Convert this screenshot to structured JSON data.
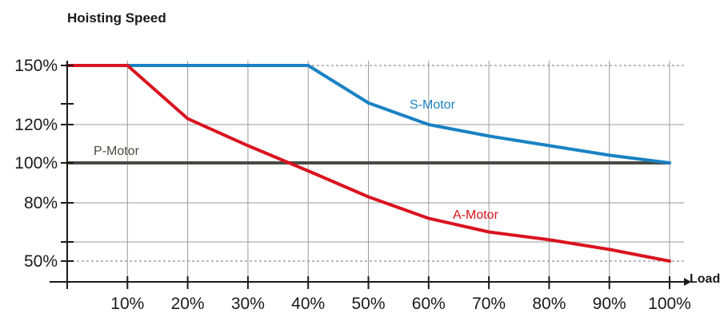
{
  "chart_data": {
    "type": "line",
    "title": "Hoisting Speed",
    "xlabel": "Load",
    "ylabel": "",
    "x_ticks": [
      "10%",
      "20%",
      "30%",
      "40%",
      "50%",
      "60%",
      "70%",
      "80%",
      "90%",
      "100%"
    ],
    "y_ticks": [
      "150%",
      "120%",
      "100%",
      "80%",
      "50%"
    ],
    "y_tick_values": [
      150,
      120,
      100,
      80,
      50
    ],
    "xlim": [
      0,
      100
    ],
    "ylim": [
      40,
      150
    ],
    "grid": true,
    "series": [
      {
        "name": "S-Motor",
        "color": "#1a82c4",
        "x": [
          0,
          10,
          40,
          50,
          60,
          70,
          80,
          90,
          100
        ],
        "y": [
          150,
          150,
          150,
          131,
          120,
          114,
          109,
          104,
          100
        ]
      },
      {
        "name": "A-Motor",
        "color": "#d9131f",
        "x": [
          0,
          10,
          20,
          30,
          40,
          50,
          60,
          70,
          80,
          90,
          100
        ],
        "y": [
          150,
          150,
          123,
          109,
          96,
          83,
          72,
          65,
          61,
          56,
          50
        ]
      },
      {
        "name": "P-Motor",
        "color": "#4a4a44",
        "x": [
          0,
          100
        ],
        "y": [
          100,
          100
        ]
      }
    ]
  }
}
